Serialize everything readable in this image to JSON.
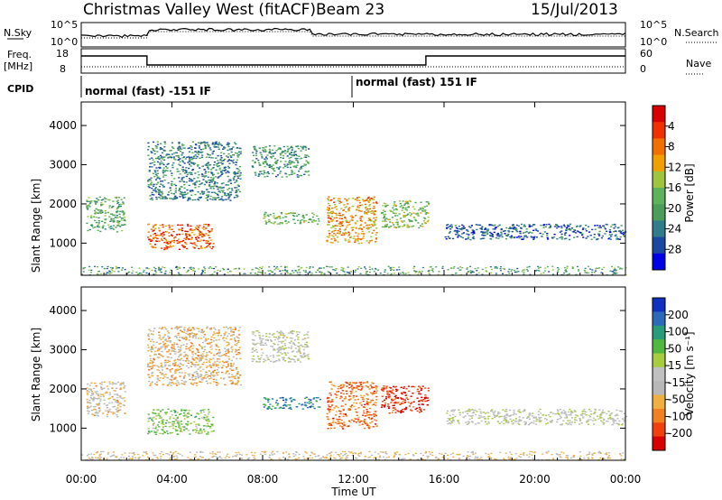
{
  "header": {
    "station": "Christmas Valley West (fitACF)",
    "beam": "Beam 23",
    "date": "15/Jul/2013"
  },
  "strip_labels": {
    "nsky": "N.Sky",
    "nsky_hi": "10^5",
    "nsky_lo": "10^0",
    "nsearch": "N.Search",
    "nsearch_hi": "10^5",
    "nsearch_lo": "10^0",
    "freq_line1": "Freq.",
    "freq_line2": "[MHz]",
    "freq_hi": "18",
    "freq_lo": "8",
    "nave": "Nave",
    "nave_hi": "60",
    "nave_lo": "0",
    "cpid": "CPID",
    "cpid_left": "normal (fast) -151 IF",
    "cpid_right": "normal (fast) 151 IF"
  },
  "colors": {
    "power": [
      "#0000e6",
      "#1a48a0",
      "#2f7d8a",
      "#4a9e5a",
      "#5cb35c",
      "#9fc53e",
      "#f0a000",
      "#f07000",
      "#f03000",
      "#d80000"
    ],
    "velocity": [
      "#1030c0",
      "#2a6ab8",
      "#2a9a7a",
      "#50b840",
      "#a8cc40",
      "#c0c0c0",
      "#b8b8b8",
      "#f0b040",
      "#f08020",
      "#f04010",
      "#d80000"
    ]
  },
  "chart_data": [
    {
      "type": "heatmap",
      "title": "",
      "xlabel": "",
      "ylabel": "Slant Range [km]",
      "x_ticks": [
        "00:00",
        "04:00",
        "08:00",
        "12:00",
        "16:00",
        "20:00",
        "00:00"
      ],
      "y_ticks": [
        "1000",
        "2000",
        "3000",
        "4000"
      ],
      "xlim": [
        0,
        24
      ],
      "ylim": [
        180,
        4600
      ],
      "colorbar": {
        "label": "Power [dB]",
        "ticks": [
          "4",
          "8",
          "12",
          "16",
          "20",
          "24",
          "28"
        ],
        "range": [
          0,
          30
        ]
      },
      "echo_regions": [
        {
          "t0": 0.2,
          "t1": 1.9,
          "r0": 1300,
          "r1": 2200,
          "value": 12
        },
        {
          "t0": 2.9,
          "t1": 5.8,
          "r0": 850,
          "r1": 1500,
          "value": 24
        },
        {
          "t0": 2.9,
          "t1": 7.0,
          "r0": 2100,
          "r1": 3600,
          "value": 8
        },
        {
          "t0": 7.5,
          "t1": 10.0,
          "r0": 2700,
          "r1": 3500,
          "value": 10
        },
        {
          "t0": 8.0,
          "t1": 10.5,
          "r0": 1500,
          "r1": 1800,
          "value": 14
        },
        {
          "t0": 10.8,
          "t1": 13.0,
          "r0": 1000,
          "r1": 2200,
          "value": 20
        },
        {
          "t0": 13.2,
          "t1": 15.3,
          "r0": 1400,
          "r1": 2100,
          "value": 14
        },
        {
          "t0": 16.0,
          "t1": 24.0,
          "r0": 1100,
          "r1": 1500,
          "value": 6
        }
      ]
    },
    {
      "type": "heatmap",
      "title": "",
      "xlabel": "Time UT",
      "ylabel": "Slant Range [km]",
      "x_ticks": [
        "00:00",
        "04:00",
        "08:00",
        "12:00",
        "16:00",
        "20:00",
        "00:00"
      ],
      "y_ticks": [
        "1000",
        "2000",
        "3000",
        "4000"
      ],
      "xlim": [
        0,
        24
      ],
      "ylim": [
        180,
        4600
      ],
      "colorbar": {
        "label": "Velocity [m s⁻¹]",
        "ticks": [
          "200",
          "100",
          "50",
          "15",
          "-15",
          "-50",
          "-100",
          "-200"
        ],
        "range": [
          -250,
          250
        ]
      },
      "echo_regions": [
        {
          "t0": 0.2,
          "t1": 1.9,
          "r0": 1300,
          "r1": 2200,
          "value": -60
        },
        {
          "t0": 2.9,
          "t1": 5.8,
          "r0": 850,
          "r1": 1500,
          "value": 60
        },
        {
          "t0": 2.9,
          "t1": 7.0,
          "r0": 2100,
          "r1": 3600,
          "value": -80
        },
        {
          "t0": 7.5,
          "t1": 10.0,
          "r0": 2700,
          "r1": 3500,
          "value": -10
        },
        {
          "t0": 8.0,
          "t1": 10.5,
          "r0": 1500,
          "r1": 1800,
          "value": 150
        },
        {
          "t0": 10.8,
          "t1": 13.0,
          "r0": 1000,
          "r1": 2200,
          "value": -150
        },
        {
          "t0": 13.2,
          "t1": 15.3,
          "r0": 1400,
          "r1": 2100,
          "value": -200
        },
        {
          "t0": 16.0,
          "t1": 24.0,
          "r0": 1100,
          "r1": 1500,
          "value": 0
        }
      ]
    }
  ]
}
